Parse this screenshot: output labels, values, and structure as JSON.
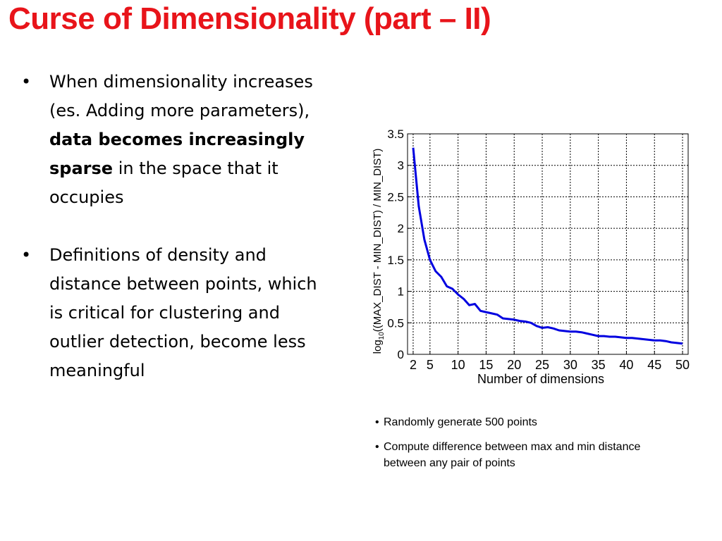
{
  "slide": {
    "title": "Curse of Dimensionality (part – II)",
    "bullets": [
      {
        "before": "When dimensionality increases (es. Adding more parameters), ",
        "bold": "data becomes increasingly sparse",
        "after": " in the space that it occupies"
      },
      {
        "before": "Definitions of density and distance between points, which is critical for clustering and outlier detection, become less meaningful",
        "bold": "",
        "after": ""
      }
    ],
    "notes": [
      "Randomly generate 500 points",
      "Compute difference between max and min distance between any pair of points"
    ],
    "bullet_glyph": "•",
    "note_glyph": "•",
    "colors": {
      "title": "#e8141a",
      "line": "#0000e0",
      "grid": "#000000"
    }
  },
  "chart_data": {
    "type": "line",
    "xlabel": "Number of dimensions",
    "ylabel_main": "log",
    "ylabel_sub": "10",
    "ylabel_rest": "((MAX_DIST - MIN_DIST) / MIN_DIST)",
    "xlim": [
      1,
      51
    ],
    "ylim": [
      0,
      3.5
    ],
    "xticks": [
      2,
      5,
      10,
      15,
      20,
      25,
      30,
      35,
      40,
      45,
      50
    ],
    "yticks": [
      0,
      0.5,
      1,
      1.5,
      2,
      2.5,
      3,
      3.5
    ],
    "ytick_labels": [
      "0",
      "0.5",
      "1",
      "1.5",
      "2",
      "2.5",
      "3",
      "3.5"
    ],
    "grid": true,
    "series": [
      {
        "x": [
          2,
          3,
          4,
          5,
          6,
          7,
          8,
          9,
          10,
          11,
          12,
          13,
          14,
          15,
          16,
          17,
          18,
          19,
          20,
          21,
          22,
          23,
          24,
          25,
          26,
          27,
          28,
          29,
          30,
          31,
          32,
          33,
          34,
          35,
          36,
          37,
          38,
          39,
          40,
          41,
          42,
          43,
          44,
          45,
          46,
          47,
          48,
          49,
          50
        ],
        "values": [
          3.28,
          2.35,
          1.82,
          1.5,
          1.32,
          1.23,
          1.08,
          1.04,
          0.95,
          0.88,
          0.78,
          0.8,
          0.69,
          0.67,
          0.65,
          0.63,
          0.57,
          0.56,
          0.55,
          0.53,
          0.52,
          0.5,
          0.45,
          0.42,
          0.43,
          0.41,
          0.38,
          0.37,
          0.36,
          0.36,
          0.35,
          0.33,
          0.31,
          0.29,
          0.29,
          0.28,
          0.28,
          0.27,
          0.26,
          0.26,
          0.25,
          0.24,
          0.23,
          0.22,
          0.22,
          0.21,
          0.19,
          0.18,
          0.17
        ]
      }
    ]
  }
}
